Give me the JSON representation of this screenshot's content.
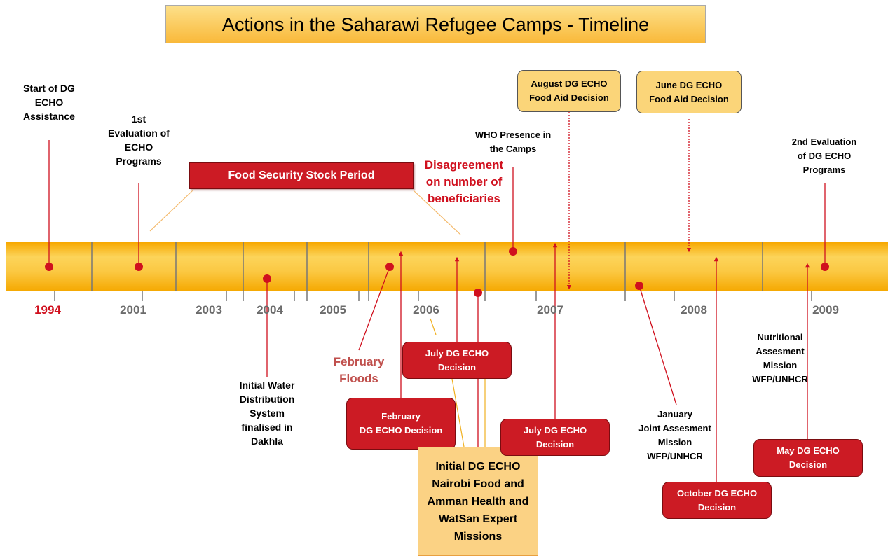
{
  "title": "Actions in the Saharawi Refugee Camps - Timeline",
  "years": [
    "1994",
    "2001",
    "2003",
    "2004",
    "2005",
    "2006",
    "2007",
    "2008",
    "2009"
  ],
  "period": "Food Security Stock Period",
  "events": [
    "Start of DG\nECHO\nAssistance",
    "1st\nEvaluation of\nECHO\nPrograms",
    "Disagreement\non number of\nbeneficiaries",
    "WHO Presence in\nthe Camps",
    "August DG ECHO\nFood Aid Decision",
    "June DG ECHO\nFood Aid Decision",
    "2nd Evaluation\nof DG ECHO\nPrograms",
    "Initial Water\nDistribution\nSystem\nfinalised in\nDakhla",
    "February\nFloods",
    "February\nDG ECHO Decision",
    "July DG ECHO\nDecision",
    "Initial DG ECHO\nNairobi Food and\nAmman Health and\nWatSan Expert\nMissions",
    "July DG ECHO\nDecision",
    "January\nJoint Assesment\nMission\nWFP/UNHCR",
    "October DG ECHO\nDecision",
    "Nutritional\nAssesment\nMission\nWFP/UNHCR",
    "May DG ECHO\nDecision"
  ]
}
